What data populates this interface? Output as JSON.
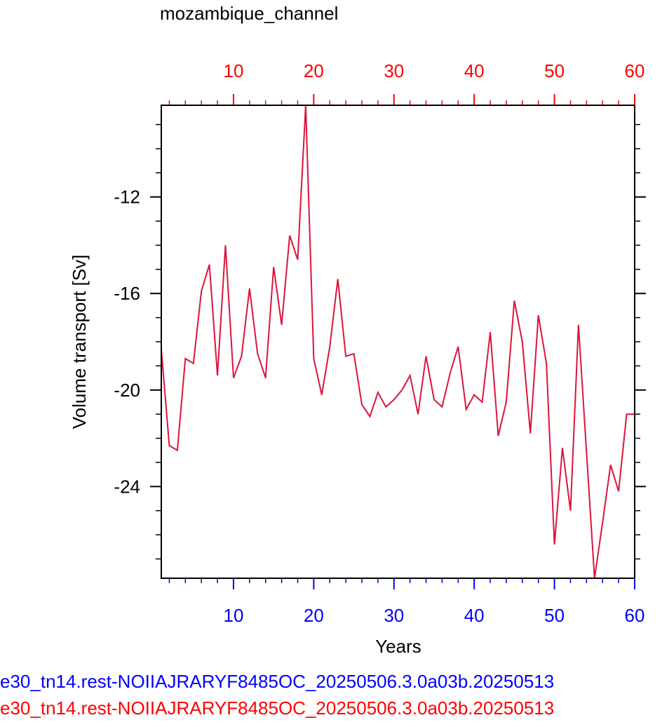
{
  "colors": {
    "axis": "#000000",
    "bottom_axis": "#0000ff",
    "top_axis": "#ff0000",
    "series_line": "#dc143c",
    "background": "#ffffff"
  },
  "legend": {
    "line1": "e30_tn14.rest-NOIIAJRARYF8485OC_20250506.3.0a03b.20250513",
    "line2": "e30_tn14.rest-NOIIAJRARYF8485OC_20250506.3.0a03b.20250513"
  },
  "chart_data": {
    "type": "line",
    "title": "mozambique_channel",
    "xlabel": "Years",
    "ylabel": "Volume transport [Sv]",
    "xlim": [
      1,
      60
    ],
    "ylim": [
      -27.8,
      -8.2
    ],
    "x_ticks": [
      10,
      20,
      30,
      40,
      50,
      60
    ],
    "x_tick_labels": [
      "10",
      "20",
      "30",
      "40",
      "50",
      "60"
    ],
    "y_ticks": [
      -12,
      -16,
      -20,
      -24
    ],
    "y_tick_labels": [
      "-12",
      "-16",
      "-20",
      "-24"
    ],
    "top_axis_ticks": [
      10,
      20,
      30,
      40,
      50,
      60
    ],
    "top_axis_tick_labels": [
      "10",
      "20",
      "30",
      "40",
      "50",
      "60"
    ],
    "grid": false,
    "series": [
      {
        "x": [
          1,
          2,
          3,
          4,
          5,
          6,
          7,
          8,
          9,
          10,
          11,
          12,
          13,
          14,
          15,
          16,
          17,
          18,
          19,
          20,
          21,
          22,
          23,
          24,
          25,
          26,
          27,
          28,
          29,
          30,
          31,
          32,
          33,
          34,
          35,
          36,
          37,
          38,
          39,
          40,
          41,
          42,
          43,
          44,
          45,
          46,
          47,
          48,
          49,
          50,
          51,
          52,
          53,
          54,
          55,
          56,
          57,
          58,
          59,
          60
        ],
        "values": [
          -18.3,
          -22.3,
          -22.5,
          -18.7,
          -18.9,
          -15.9,
          -14.8,
          -19.4,
          -14.0,
          -19.5,
          -18.6,
          -15.8,
          -18.5,
          -19.5,
          -14.9,
          -17.3,
          -13.6,
          -14.6,
          -8.2,
          -18.7,
          -20.2,
          -18.2,
          -15.4,
          -18.6,
          -18.5,
          -20.6,
          -21.1,
          -20.1,
          -20.7,
          -20.4,
          -20.0,
          -19.4,
          -21.0,
          -18.6,
          -20.4,
          -20.7,
          -19.3,
          -18.2,
          -20.8,
          -20.2,
          -20.5,
          -17.6,
          -21.9,
          -20.5,
          -16.3,
          -18.0,
          -21.8,
          -16.9,
          -18.9,
          -26.4,
          -22.4,
          -25.0,
          -17.3,
          -22.6,
          -27.8,
          -25.5,
          -23.1,
          -24.2,
          -21.0,
          -21.0
        ]
      }
    ]
  }
}
